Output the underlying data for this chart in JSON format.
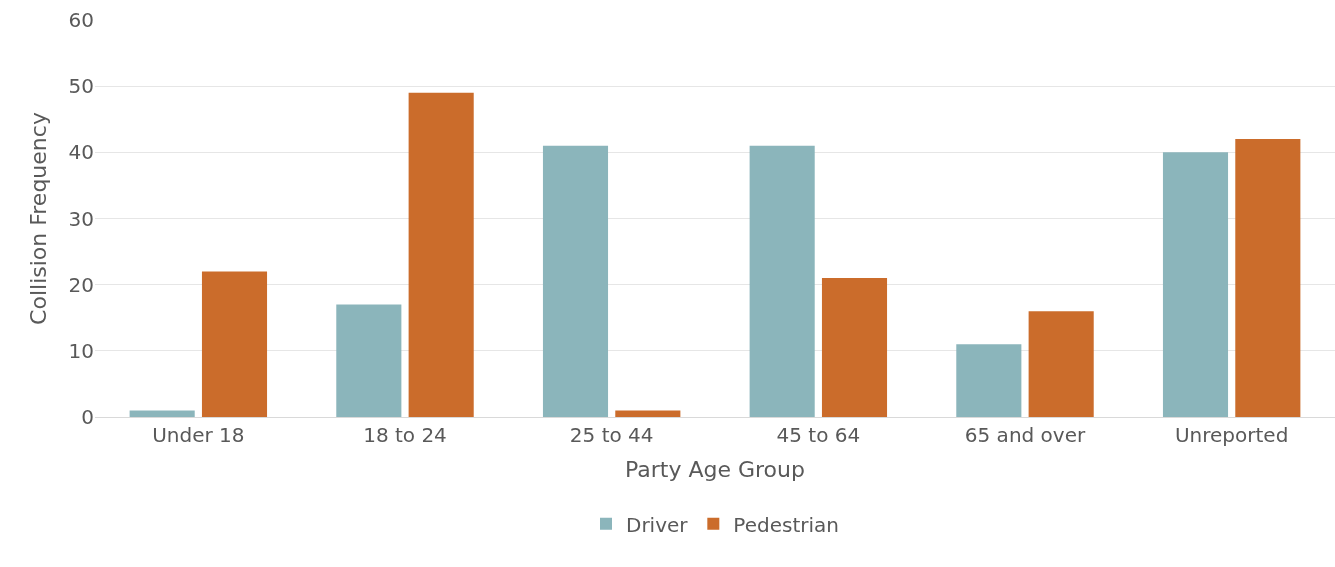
{
  "chart_data": {
    "type": "bar",
    "xlabel": "Party Age Group",
    "ylabel": "Collision Frequency",
    "categories": [
      "Under 18",
      "18 to 24",
      "25 to 44",
      "45 to 64",
      "65 and over",
      "Unreported"
    ],
    "series": [
      {
        "name": "Driver",
        "color": "#8bb5bb",
        "values": [
          1,
          17,
          41,
          41,
          11,
          40
        ]
      },
      {
        "name": "Pedestrian",
        "color": "#cb6c2b",
        "values": [
          22,
          49,
          1,
          21,
          16,
          42
        ]
      }
    ],
    "ylim": [
      0,
      60
    ],
    "yticks": [
      0,
      10,
      20,
      30,
      40,
      50,
      60
    ],
    "grid": "y",
    "legend": "bottom"
  }
}
